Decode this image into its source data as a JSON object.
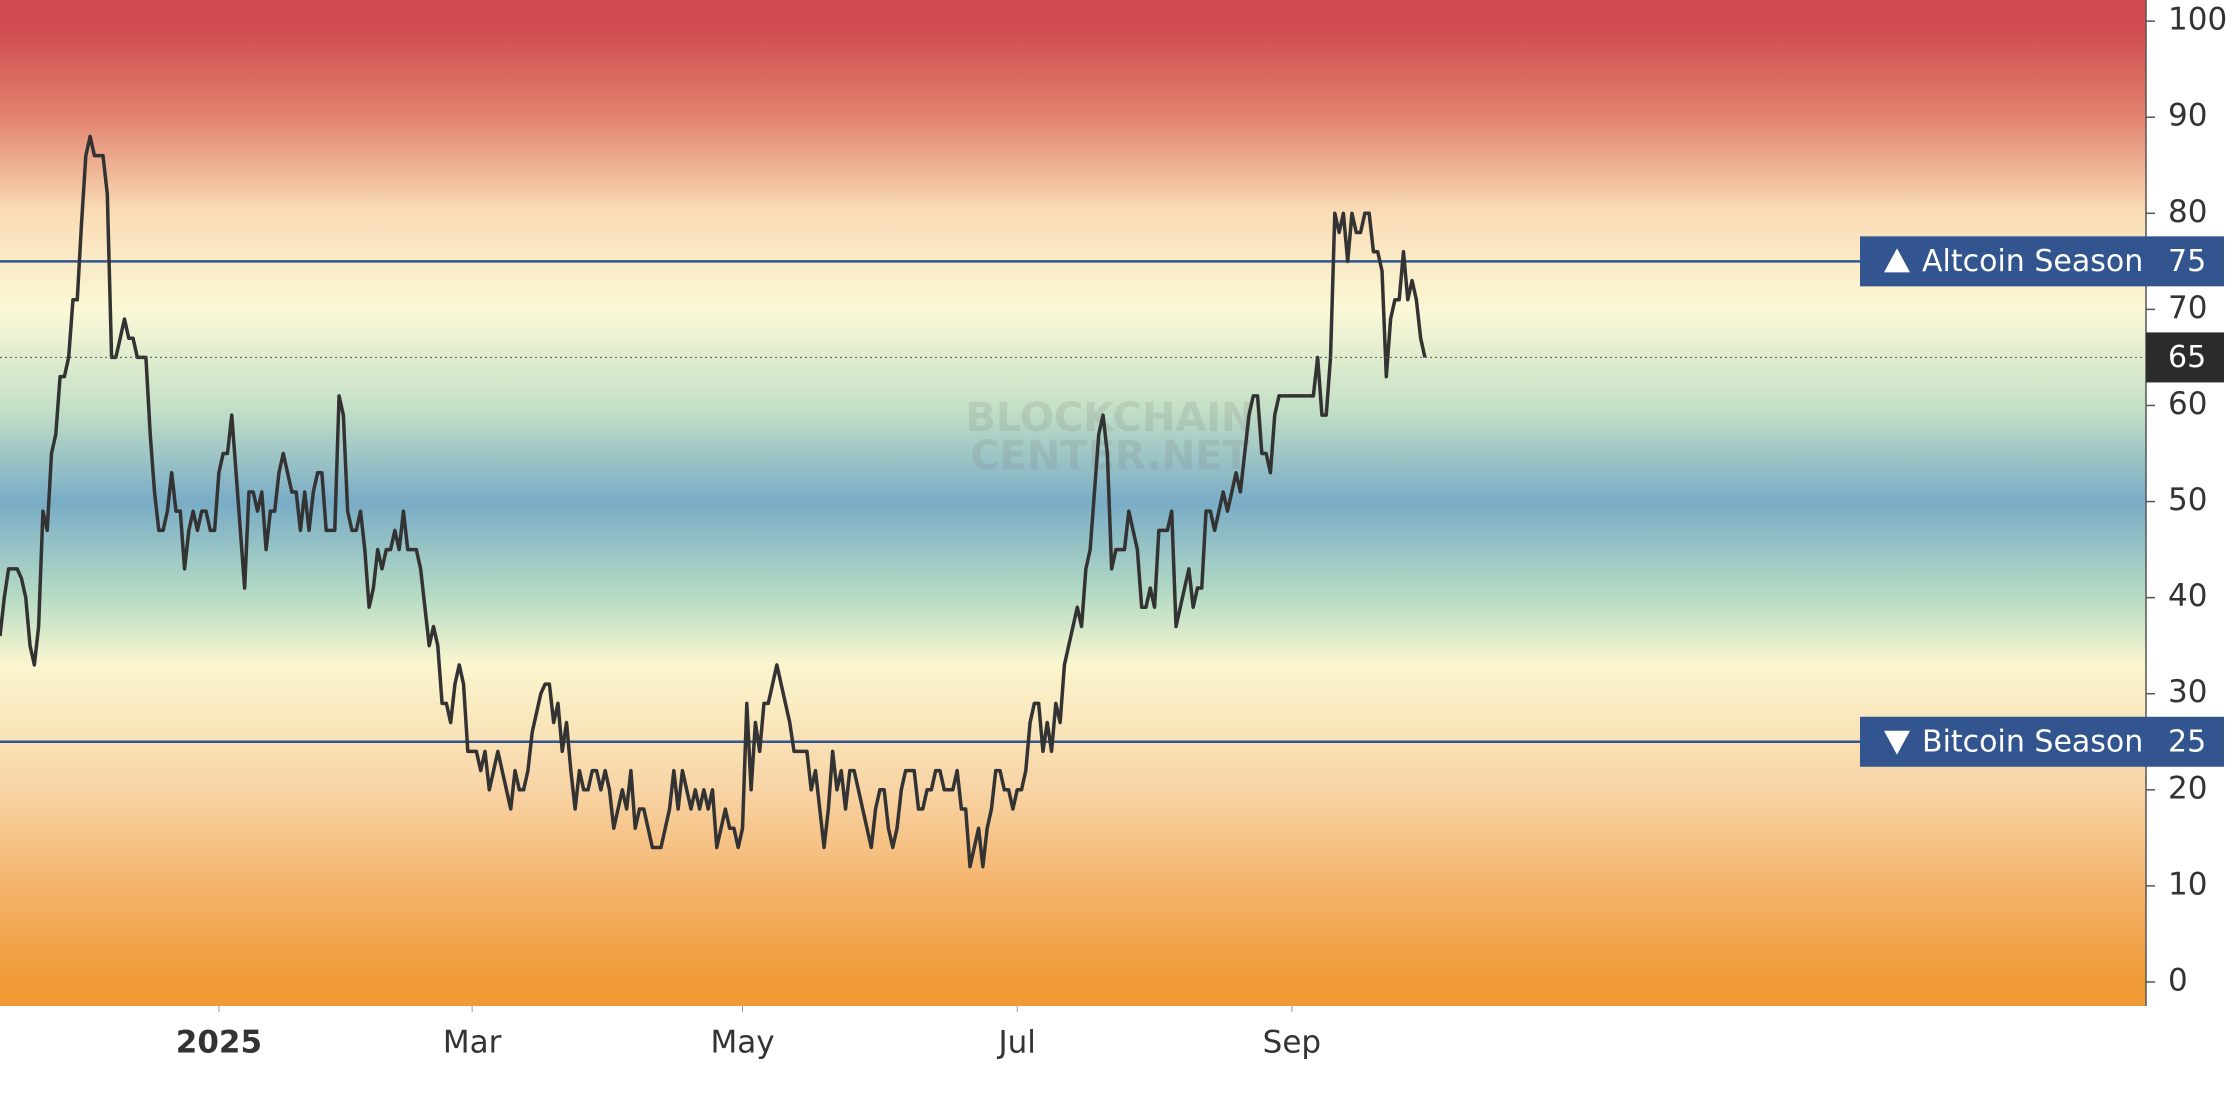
{
  "chart_data": {
    "type": "line",
    "values": [
      36,
      40,
      43,
      43,
      43,
      42,
      40,
      35,
      33,
      37,
      49,
      47,
      55,
      57,
      63,
      63,
      65,
      71,
      71,
      79,
      86,
      88,
      86,
      86,
      86,
      82,
      65,
      65,
      67,
      69,
      67,
      67,
      65,
      65,
      65,
      57,
      51,
      47,
      47,
      49,
      53,
      49,
      49,
      43,
      47,
      49,
      47,
      49,
      49,
      47,
      47,
      53,
      55,
      55,
      59,
      53,
      47,
      41,
      51,
      51,
      49,
      51,
      45,
      49,
      49,
      53,
      55,
      53,
      51,
      51,
      47,
      51,
      47,
      51,
      53,
      53,
      47,
      47,
      47,
      61,
      59,
      49,
      47,
      47,
      49,
      45,
      39,
      41,
      45,
      43,
      45,
      45,
      47,
      45,
      49,
      45,
      45,
      45,
      43,
      39,
      35,
      37,
      35,
      29,
      29,
      27,
      31,
      33,
      31,
      24,
      24,
      24,
      22,
      24,
      20,
      22,
      24,
      22,
      20,
      18,
      22,
      20,
      20,
      22,
      26,
      28,
      30,
      31,
      31,
      27,
      29,
      24,
      27,
      22,
      18,
      22,
      20,
      20,
      22,
      22,
      20,
      22,
      20,
      16,
      18,
      20,
      18,
      22,
      16,
      18,
      18,
      16,
      14,
      14,
      14,
      16,
      18,
      22,
      18,
      22,
      20,
      18,
      20,
      18,
      20,
      18,
      20,
      14,
      16,
      18,
      16,
      16,
      14,
      16,
      29,
      20,
      27,
      24,
      29,
      29,
      31,
      33,
      31,
      29,
      27,
      24,
      24,
      24,
      24,
      20,
      22,
      18,
      14,
      18,
      24,
      20,
      22,
      18,
      22,
      22,
      20,
      18,
      16,
      14,
      18,
      20,
      20,
      16,
      14,
      16,
      20,
      22,
      22,
      22,
      18,
      18,
      20,
      20,
      22,
      22,
      20,
      20,
      20,
      22,
      18,
      18,
      12,
      14,
      16,
      12,
      16,
      18,
      22,
      22,
      20,
      20,
      18,
      20,
      20,
      22,
      27,
      29,
      29,
      24,
      27,
      24,
      29,
      27,
      33,
      35,
      37,
      39,
      37,
      43,
      45,
      51,
      57,
      59,
      55,
      43,
      45,
      45,
      45,
      49,
      47,
      45,
      39,
      39,
      41,
      39,
      47,
      47,
      47,
      49,
      37,
      39,
      41,
      43,
      39,
      41,
      41,
      49,
      49,
      47,
      49,
      51,
      49,
      51,
      53,
      51,
      55,
      59,
      61,
      61,
      55,
      55,
      53,
      59,
      61,
      61,
      61,
      61,
      61,
      61,
      61,
      61,
      61,
      65,
      59,
      59,
      65,
      80,
      78,
      80,
      75,
      80,
      78,
      78,
      80,
      80,
      76,
      76,
      74,
      63,
      69,
      71,
      71,
      76,
      71,
      73,
      71,
      67,
      65
    ],
    "color": "#333333",
    "xlim": [
      0,
      500
    ],
    "xticks": [
      {
        "value": 51,
        "label": "2025",
        "bold": true
      },
      {
        "value": 110,
        "label": "Mar"
      },
      {
        "value": 173,
        "label": "May"
      },
      {
        "value": 237,
        "label": "Jul"
      },
      {
        "value": 301,
        "label": "Sep"
      }
    ],
    "ylim": [
      -2.5,
      102.2
    ],
    "yticks": [
      0,
      10,
      20,
      30,
      40,
      50,
      60,
      70,
      80,
      90,
      100
    ],
    "reference_lines": [
      {
        "value": 75,
        "label": "Altcoin Season",
        "direction": "up",
        "color": "#32558f"
      },
      {
        "value": 25,
        "label": "Bitcoin Season",
        "direction": "down",
        "color": "#32558f"
      }
    ],
    "watermark": [
      "BLOCKCHAIN",
      "CENTER.NET"
    ]
  }
}
